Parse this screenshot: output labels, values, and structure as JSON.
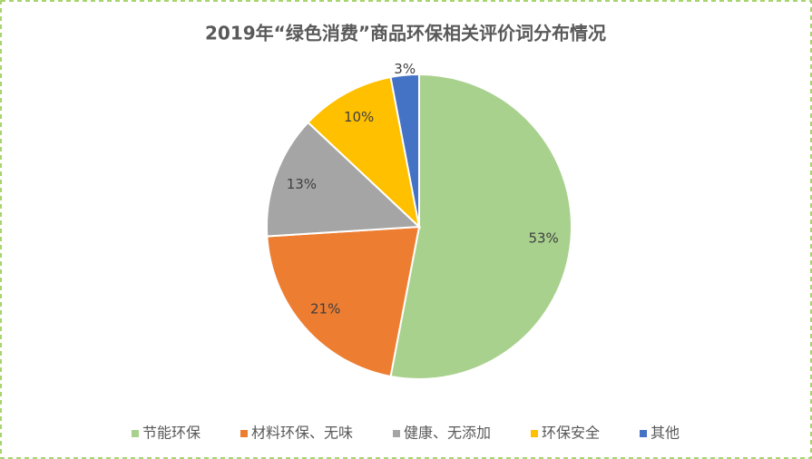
{
  "chart_data": {
    "type": "pie",
    "title": "2019年“绿色消费”商品环保相关评价词分布情况",
    "categories": [
      "节能环保",
      "材料环保、无味",
      "健康、无添加",
      "环保安全",
      "其他"
    ],
    "values": [
      53,
      21,
      13,
      10,
      3
    ],
    "value_labels": [
      "53%",
      "21%",
      "13%",
      "10%",
      "3%"
    ],
    "colors": [
      "#a9d18e",
      "#ed7d31",
      "#a5a5a5",
      "#ffc000",
      "#4472c4"
    ],
    "legend": "bottom"
  }
}
